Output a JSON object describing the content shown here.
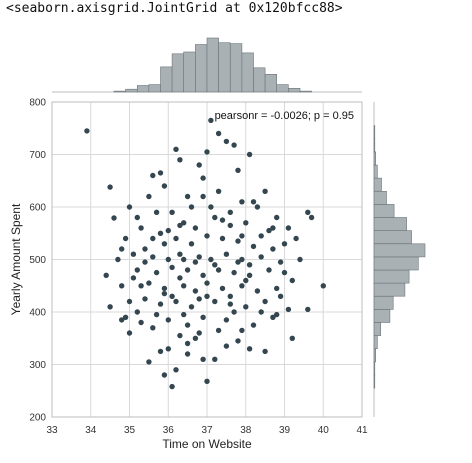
{
  "output_text": "<seaborn.axisgrid.JointGrid at 0x120bfcc88>",
  "chart_data": {
    "type": "scatter",
    "xlabel": "Time on Website",
    "ylabel": "Yearly Amount Spent",
    "xlim": [
      33,
      41
    ],
    "ylim": [
      200,
      800
    ],
    "xticks": [
      33,
      34,
      35,
      36,
      37,
      38,
      39,
      40,
      41
    ],
    "yticks": [
      200,
      300,
      400,
      500,
      600,
      700,
      800
    ],
    "annotation": "pearsonr = -0.0026; p = 0.95",
    "grid": true,
    "colors": {
      "points": "#34464f",
      "hist_fill": "#a9b1b5",
      "hist_edge": "#6c7579",
      "grid": "#d9d9d9"
    },
    "marginal_x_hist": {
      "bin_edges": [
        34.6,
        34.9,
        35.2,
        35.5,
        35.8,
        36.1,
        36.4,
        36.7,
        37.0,
        37.3,
        37.6,
        37.9,
        38.2,
        38.5,
        38.8,
        39.1,
        39.4,
        39.7
      ],
      "counts": [
        1,
        3,
        7,
        8,
        27,
        41,
        43,
        51,
        58,
        53,
        52,
        42,
        26,
        19,
        8,
        4,
        1
      ]
    },
    "marginal_y_hist": {
      "bin_edges": [
        255,
        280,
        305,
        330,
        355,
        380,
        405,
        430,
        455,
        480,
        505,
        530,
        555,
        580,
        605,
        630,
        655,
        680,
        705,
        730,
        755
      ],
      "counts": [
        1,
        1,
        2,
        4,
        8,
        19,
        23,
        37,
        42,
        53,
        61,
        45,
        39,
        24,
        15,
        9,
        4,
        2,
        1,
        1
      ]
    },
    "points": [
      [
        33.9,
        745
      ],
      [
        37.1,
        765
      ],
      [
        37.5,
        725
      ],
      [
        37.7,
        718
      ],
      [
        36.2,
        710
      ],
      [
        35.9,
        640
      ],
      [
        38.1,
        700
      ],
      [
        36.3,
        690
      ],
      [
        35.6,
        660
      ],
      [
        37.0,
        705
      ],
      [
        36.9,
        655
      ],
      [
        37.8,
        670
      ],
      [
        34.5,
        638
      ],
      [
        35.5,
        620
      ],
      [
        36.8,
        680
      ],
      [
        38.5,
        630
      ],
      [
        39.6,
        590
      ],
      [
        39.7,
        580
      ],
      [
        34.6,
        579
      ],
      [
        35.0,
        600
      ],
      [
        35.2,
        580
      ],
      [
        36.1,
        590
      ],
      [
        36.5,
        620
      ],
      [
        37.3,
        630
      ],
      [
        37.9,
        610
      ],
      [
        38.3,
        600
      ],
      [
        38.8,
        580
      ],
      [
        39.1,
        560
      ],
      [
        39.3,
        540
      ],
      [
        35.3,
        560
      ],
      [
        35.8,
        550
      ],
      [
        36.4,
        570
      ],
      [
        36.7,
        560
      ],
      [
        37.2,
        580
      ],
      [
        37.6,
        590
      ],
      [
        38.0,
        570
      ],
      [
        38.6,
        555
      ],
      [
        34.9,
        540
      ],
      [
        35.4,
        520
      ],
      [
        35.9,
        530
      ],
      [
        36.2,
        540
      ],
      [
        36.6,
        530
      ],
      [
        37.0,
        545
      ],
      [
        37.4,
        540
      ],
      [
        37.8,
        535
      ],
      [
        38.2,
        525
      ],
      [
        38.7,
        520
      ],
      [
        39.0,
        530
      ],
      [
        34.7,
        500
      ],
      [
        35.1,
        510
      ],
      [
        35.6,
        505
      ],
      [
        36.0,
        500
      ],
      [
        36.3,
        510
      ],
      [
        36.8,
        505
      ],
      [
        37.1,
        500
      ],
      [
        37.5,
        510
      ],
      [
        37.9,
        500
      ],
      [
        38.4,
        505
      ],
      [
        38.9,
        495
      ],
      [
        39.4,
        500
      ],
      [
        34.4,
        470
      ],
      [
        35.2,
        480
      ],
      [
        35.7,
        475
      ],
      [
        36.1,
        485
      ],
      [
        36.5,
        480
      ],
      [
        36.9,
        470
      ],
      [
        37.3,
        480
      ],
      [
        37.7,
        475
      ],
      [
        38.1,
        470
      ],
      [
        38.6,
        480
      ],
      [
        39.2,
        460
      ],
      [
        34.8,
        450
      ],
      [
        35.5,
        455
      ],
      [
        35.9,
        445
      ],
      [
        36.4,
        450
      ],
      [
        36.7,
        440
      ],
      [
        37.0,
        455
      ],
      [
        37.4,
        445
      ],
      [
        37.9,
        450
      ],
      [
        38.3,
        440
      ],
      [
        38.8,
        445
      ],
      [
        40.0,
        450
      ],
      [
        34.5,
        410
      ],
      [
        35.0,
        420
      ],
      [
        35.4,
        425
      ],
      [
        35.8,
        415
      ],
      [
        36.2,
        420
      ],
      [
        36.6,
        410
      ],
      [
        37.2,
        420
      ],
      [
        37.6,
        415
      ],
      [
        38.0,
        410
      ],
      [
        38.5,
        420
      ],
      [
        39.1,
        405
      ],
      [
        34.9,
        390
      ],
      [
        35.3,
        380
      ],
      [
        35.7,
        395
      ],
      [
        36.0,
        385
      ],
      [
        36.5,
        375
      ],
      [
        36.9,
        390
      ],
      [
        37.5,
        385
      ],
      [
        38.2,
        375
      ],
      [
        38.7,
        390
      ],
      [
        35.0,
        360
      ],
      [
        35.6,
        370
      ],
      [
        36.3,
        355
      ],
      [
        36.8,
        360
      ],
      [
        37.3,
        365
      ],
      [
        37.8,
        345
      ],
      [
        39.2,
        350
      ],
      [
        36.0,
        330
      ],
      [
        36.5,
        320
      ],
      [
        37.5,
        335
      ],
      [
        38.1,
        330
      ],
      [
        35.5,
        305
      ],
      [
        36.9,
        310
      ],
      [
        36.2,
        290
      ],
      [
        35.9,
        280
      ],
      [
        36.1,
        258
      ],
      [
        37.0,
        268
      ],
      [
        34.8,
        385
      ],
      [
        38.8,
        395
      ],
      [
        39.6,
        405
      ],
      [
        35.8,
        665
      ],
      [
        37.3,
        740
      ],
      [
        36.3,
        565
      ],
      [
        37.6,
        565
      ],
      [
        38.4,
        545
      ],
      [
        35.4,
        495
      ],
      [
        36.7,
        495
      ],
      [
        37.8,
        495
      ],
      [
        38.0,
        460
      ],
      [
        36.3,
        465
      ],
      [
        35.1,
        465
      ],
      [
        37.6,
        430
      ],
      [
        36.8,
        425
      ],
      [
        38.9,
        430
      ],
      [
        35.9,
        435
      ],
      [
        37.1,
        600
      ],
      [
        36.6,
        600
      ],
      [
        38.2,
        610
      ],
      [
        35.7,
        590
      ],
      [
        36.9,
        620
      ],
      [
        37.4,
        575
      ],
      [
        38.7,
        560
      ],
      [
        34.8,
        520
      ],
      [
        39.0,
        475
      ],
      [
        35.6,
        540
      ],
      [
        36.0,
        555
      ],
      [
        37.9,
        545
      ],
      [
        36.4,
        500
      ],
      [
        37.2,
        490
      ],
      [
        38.1,
        490
      ],
      [
        35.3,
        450
      ],
      [
        36.1,
        430
      ],
      [
        37.0,
        430
      ],
      [
        37.7,
        400
      ],
      [
        36.4,
        395
      ],
      [
        38.4,
        400
      ],
      [
        35.2,
        400
      ],
      [
        36.7,
        350
      ],
      [
        37.9,
        365
      ],
      [
        36.5,
        340
      ],
      [
        37.2,
        310
      ],
      [
        38.5,
        325
      ],
      [
        35.8,
        325
      ]
    ]
  }
}
